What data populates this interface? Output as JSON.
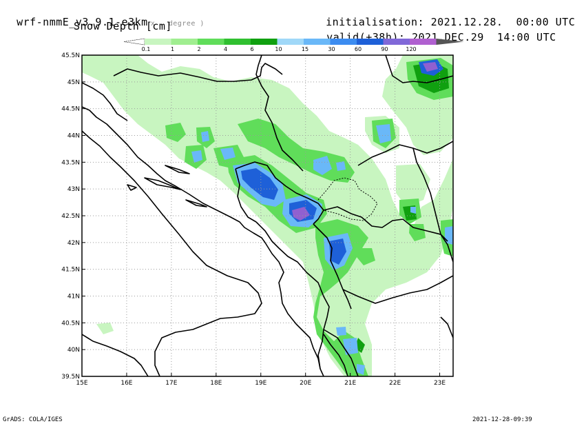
{
  "header": {
    "model_prefix": "wrf-nmmE_v3.9.1-e3km",
    "model_suffix": "x . degree )",
    "field": "Snow Depth [cm]",
    "init_label": "initialisation:",
    "init_value": "2021.12.28.  00:00 UTC",
    "valid_label": "valid(+38h):",
    "valid_value": "2021.DEC.29  14:00 UTC"
  },
  "colorbar": {
    "levels": [
      "0.1",
      "1",
      "2",
      "4",
      "6",
      "10",
      "15",
      "30",
      "60",
      "90",
      "120"
    ],
    "colors": [
      "#c8f5c0",
      "#a0ee90",
      "#60dd5a",
      "#30c030",
      "#10a010",
      "#a0d8f8",
      "#6ab8f8",
      "#3c8cf0",
      "#1e60d8",
      "#8068d8",
      "#b060d0"
    ]
  },
  "axes": {
    "lon_labels": [
      "15E",
      "16E",
      "17E",
      "18E",
      "19E",
      "20E",
      "21E",
      "22E",
      "23E"
    ],
    "lat_labels": [
      "45.5N",
      "45N",
      "44.5N",
      "44N",
      "43.5N",
      "43N",
      "42.5N",
      "42N",
      "41.5N",
      "41N",
      "40.5N",
      "40N",
      "39.5N"
    ],
    "lon_range": [
      15,
      23.3
    ],
    "lat_range": [
      39.5,
      45.5
    ],
    "grid": true
  },
  "footer": {
    "left": "GrADS: COLA/IGES",
    "right": "2021-12-28-09:39"
  }
}
